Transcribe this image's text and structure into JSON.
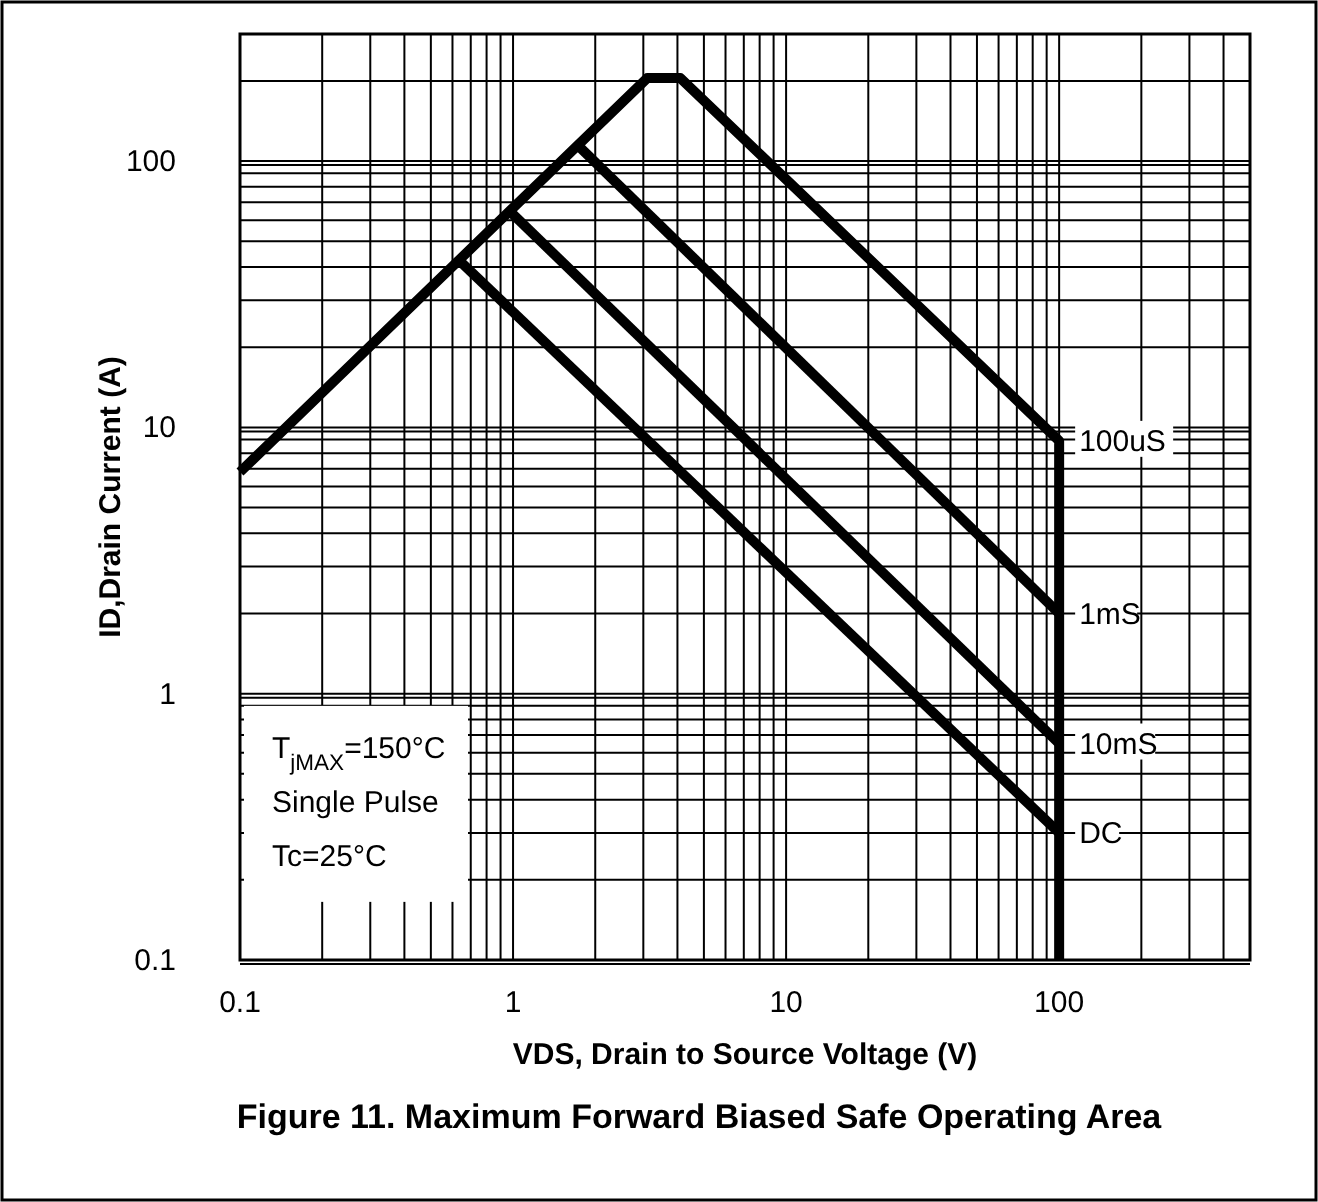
{
  "chart_data": {
    "type": "line",
    "title": "Figure 11. Maximum Forward Biased Safe Operating Area",
    "xlabel": "VDS, Drain to Source Voltage (V)",
    "ylabel": "ID,Drain Current (A)",
    "log": "xy",
    "grid": true,
    "line_style": "solid",
    "xlim": [
      0.1,
      500
    ],
    "ylim": [
      0.1,
      300
    ],
    "xticks": [
      0.1,
      1,
      10,
      100
    ],
    "yticks": [
      0.1,
      1,
      10,
      100
    ],
    "series": [
      {
        "name": "100uS",
        "color": "#000000",
        "x": [
          0.1,
          3.1,
          4.1,
          100,
          100
        ],
        "values": [
          6.8,
          205,
          205,
          8.9,
          0.1
        ]
      },
      {
        "name": "1mS",
        "color": "#000000",
        "x": [
          1.75,
          100
        ],
        "values": [
          113,
          2.0
        ]
      },
      {
        "name": "10mS",
        "color": "#000000",
        "x": [
          0.97,
          100
        ],
        "values": [
          65,
          0.65
        ]
      },
      {
        "name": "DC",
        "color": "#000000",
        "x": [
          0.64,
          100
        ],
        "values": [
          42,
          0.3
        ]
      }
    ],
    "annotations": [
      "T$_{jMAX}$=150°C",
      "Single Pulse",
      "Tc=25°C"
    ]
  }
}
